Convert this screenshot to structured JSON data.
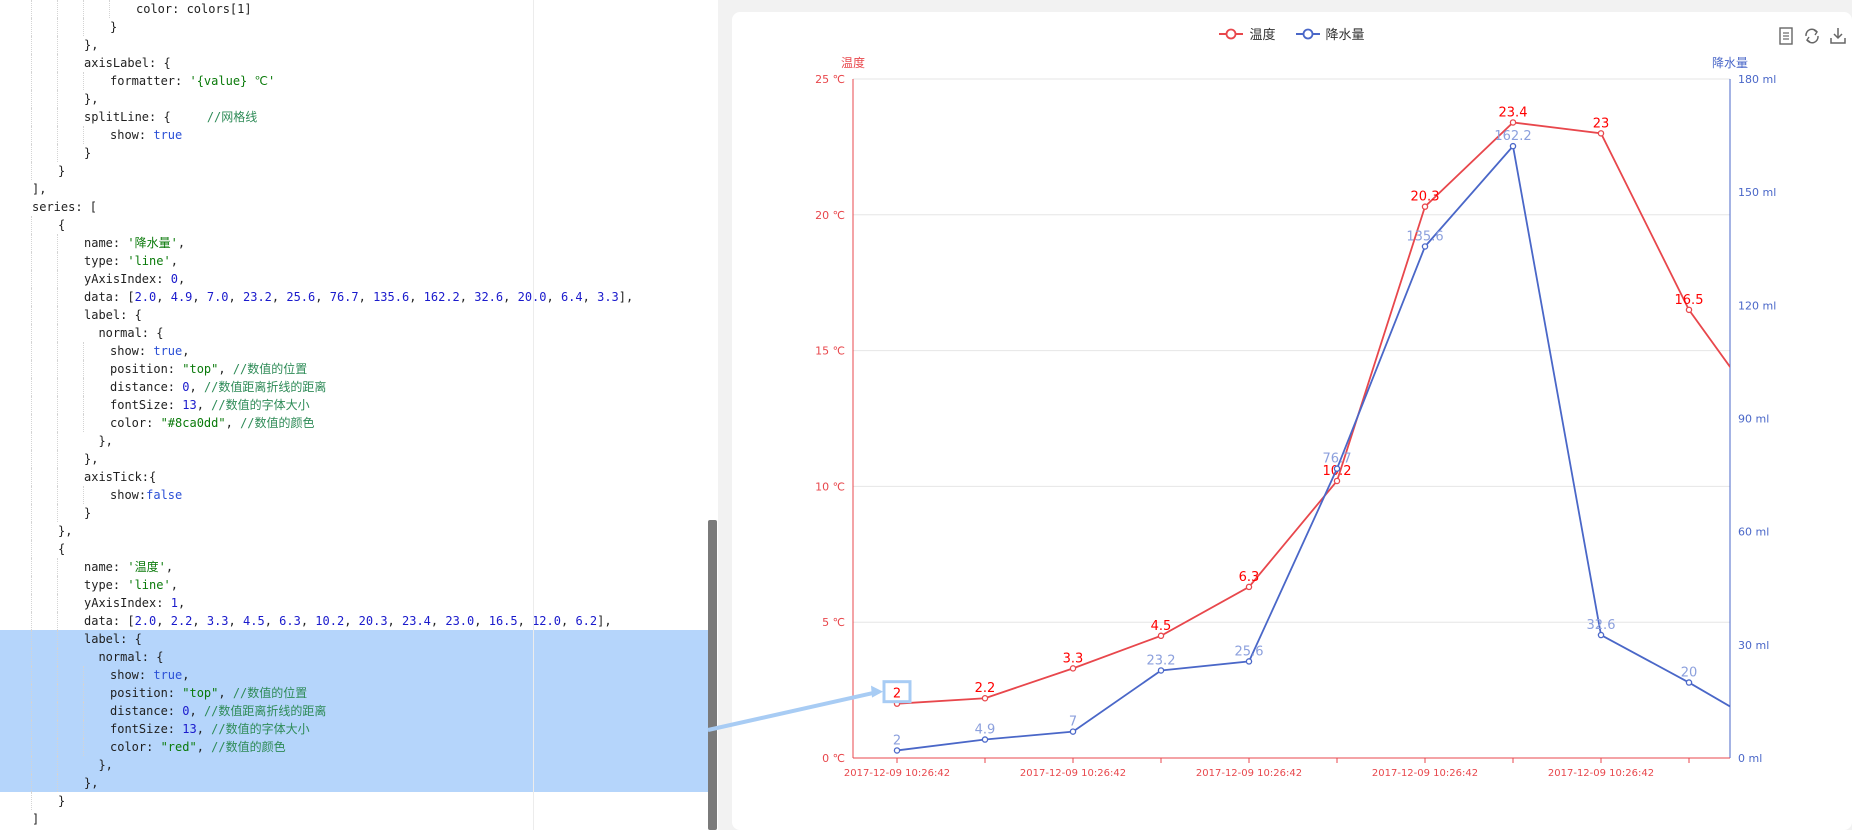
{
  "editor": {
    "lines": [
      {
        "indent": 5,
        "tokens": [
          [
            "p",
            "color: colors[1]"
          ]
        ]
      },
      {
        "indent": 4,
        "tokens": [
          [
            "p",
            "}"
          ]
        ]
      },
      {
        "indent": 3,
        "tokens": [
          [
            "p",
            "},"
          ]
        ]
      },
      {
        "indent": 3,
        "tokens": [
          [
            "p",
            "axisLabel: {"
          ]
        ]
      },
      {
        "indent": 4,
        "tokens": [
          [
            "p",
            "formatter: "
          ],
          [
            "str",
            "'{value} ℃'"
          ]
        ]
      },
      {
        "indent": 3,
        "tokens": [
          [
            "p",
            "},"
          ]
        ]
      },
      {
        "indent": 3,
        "tokens": [
          [
            "p",
            "splitLine: {     "
          ],
          [
            "cmt",
            "//网格线"
          ]
        ]
      },
      {
        "indent": 4,
        "tokens": [
          [
            "p",
            "show: "
          ],
          [
            "kw",
            "true"
          ]
        ]
      },
      {
        "indent": 3,
        "tokens": [
          [
            "p",
            "}"
          ]
        ]
      },
      {
        "indent": 2,
        "tokens": [
          [
            "p",
            "}"
          ]
        ]
      },
      {
        "indent": 1,
        "tokens": [
          [
            "p",
            "],"
          ]
        ]
      },
      {
        "indent": 1,
        "tokens": [
          [
            "p",
            "series: ["
          ]
        ]
      },
      {
        "indent": 2,
        "tokens": [
          [
            "p",
            "{"
          ]
        ]
      },
      {
        "indent": 3,
        "tokens": [
          [
            "p",
            "name: "
          ],
          [
            "str",
            "'降水量'"
          ],
          [
            "p",
            ","
          ]
        ]
      },
      {
        "indent": 3,
        "tokens": [
          [
            "p",
            "type: "
          ],
          [
            "str",
            "'line'"
          ],
          [
            "p",
            ","
          ]
        ]
      },
      {
        "indent": 3,
        "tokens": [
          [
            "p",
            "yAxisIndex: "
          ],
          [
            "num",
            "0"
          ],
          [
            "p",
            ","
          ]
        ]
      },
      {
        "indent": 3,
        "tokens": [
          [
            "p",
            "data: ["
          ],
          [
            "num",
            "2.0"
          ],
          [
            "p",
            ", "
          ],
          [
            "num",
            "4.9"
          ],
          [
            "p",
            ", "
          ],
          [
            "num",
            "7.0"
          ],
          [
            "p",
            ", "
          ],
          [
            "num",
            "23.2"
          ],
          [
            "p",
            ", "
          ],
          [
            "num",
            "25.6"
          ],
          [
            "p",
            ", "
          ],
          [
            "num",
            "76.7"
          ],
          [
            "p",
            ", "
          ],
          [
            "num",
            "135.6"
          ],
          [
            "p",
            ", "
          ],
          [
            "num",
            "162.2"
          ],
          [
            "p",
            ", "
          ],
          [
            "num",
            "32.6"
          ],
          [
            "p",
            ", "
          ],
          [
            "num",
            "20.0"
          ],
          [
            "p",
            ", "
          ],
          [
            "num",
            "6.4"
          ],
          [
            "p",
            ", "
          ],
          [
            "num",
            "3.3"
          ],
          [
            "p",
            "],"
          ]
        ]
      },
      {
        "indent": 3,
        "tokens": [
          [
            "p",
            "label: {"
          ]
        ]
      },
      {
        "indent": 3,
        "tokens": [
          [
            "p",
            "  normal: {"
          ]
        ]
      },
      {
        "indent": 4,
        "tokens": [
          [
            "p",
            "show: "
          ],
          [
            "kw",
            "true"
          ],
          [
            "p",
            ","
          ]
        ]
      },
      {
        "indent": 4,
        "tokens": [
          [
            "p",
            "position: "
          ],
          [
            "str",
            "\"top\""
          ],
          [
            "p",
            ", "
          ],
          [
            "cmt",
            "//数值的位置"
          ]
        ]
      },
      {
        "indent": 4,
        "tokens": [
          [
            "p",
            "distance: "
          ],
          [
            "num",
            "0"
          ],
          [
            "p",
            ", "
          ],
          [
            "cmt",
            "//数值距离折线的距离"
          ]
        ]
      },
      {
        "indent": 4,
        "tokens": [
          [
            "p",
            "fontSize: "
          ],
          [
            "num",
            "13"
          ],
          [
            "p",
            ", "
          ],
          [
            "cmt",
            "//数值的字体大小"
          ]
        ]
      },
      {
        "indent": 4,
        "tokens": [
          [
            "p",
            "color: "
          ],
          [
            "str",
            "\"#8ca0dd\""
          ],
          [
            "p",
            ", "
          ],
          [
            "cmt",
            "//数值的颜色"
          ]
        ]
      },
      {
        "indent": 3,
        "tokens": [
          [
            "p",
            "  },"
          ]
        ]
      },
      {
        "indent": 3,
        "tokens": [
          [
            "p",
            "},"
          ]
        ]
      },
      {
        "indent": 3,
        "tokens": [
          [
            "p",
            "axisTick:{"
          ]
        ]
      },
      {
        "indent": 4,
        "tokens": [
          [
            "p",
            "show:"
          ],
          [
            "kw",
            "false"
          ]
        ]
      },
      {
        "indent": 3,
        "tokens": [
          [
            "p",
            "}"
          ]
        ]
      },
      {
        "indent": 2,
        "tokens": [
          [
            "p",
            "},"
          ]
        ]
      },
      {
        "indent": 2,
        "tokens": [
          [
            "p",
            "{"
          ]
        ]
      },
      {
        "indent": 3,
        "tokens": [
          [
            "p",
            "name: "
          ],
          [
            "str",
            "'温度'"
          ],
          [
            "p",
            ","
          ]
        ]
      },
      {
        "indent": 3,
        "tokens": [
          [
            "p",
            "type: "
          ],
          [
            "str",
            "'line'"
          ],
          [
            "p",
            ","
          ]
        ]
      },
      {
        "indent": 3,
        "tokens": [
          [
            "p",
            "yAxisIndex: "
          ],
          [
            "num",
            "1"
          ],
          [
            "p",
            ","
          ]
        ]
      },
      {
        "indent": 3,
        "tokens": [
          [
            "p",
            "data: ["
          ],
          [
            "num",
            "2.0"
          ],
          [
            "p",
            ", "
          ],
          [
            "num",
            "2.2"
          ],
          [
            "p",
            ", "
          ],
          [
            "num",
            "3.3"
          ],
          [
            "p",
            ", "
          ],
          [
            "num",
            "4.5"
          ],
          [
            "p",
            ", "
          ],
          [
            "num",
            "6.3"
          ],
          [
            "p",
            ", "
          ],
          [
            "num",
            "10.2"
          ],
          [
            "p",
            ", "
          ],
          [
            "num",
            "20.3"
          ],
          [
            "p",
            ", "
          ],
          [
            "num",
            "23.4"
          ],
          [
            "p",
            ", "
          ],
          [
            "num",
            "23.0"
          ],
          [
            "p",
            ", "
          ],
          [
            "num",
            "16.5"
          ],
          [
            "p",
            ", "
          ],
          [
            "num",
            "12.0"
          ],
          [
            "p",
            ", "
          ],
          [
            "num",
            "6.2"
          ],
          [
            "p",
            "],"
          ]
        ]
      },
      {
        "indent": 3,
        "sel": true,
        "tokens": [
          [
            "p",
            "label: {"
          ]
        ]
      },
      {
        "indent": 3,
        "sel": true,
        "tokens": [
          [
            "p",
            "  normal: {"
          ]
        ]
      },
      {
        "indent": 4,
        "sel": true,
        "tokens": [
          [
            "p",
            "show: "
          ],
          [
            "kw",
            "true"
          ],
          [
            "p",
            ","
          ]
        ]
      },
      {
        "indent": 4,
        "sel": true,
        "tokens": [
          [
            "p",
            "position: "
          ],
          [
            "str",
            "\"top\""
          ],
          [
            "p",
            ", "
          ],
          [
            "cmt",
            "//数值的位置"
          ]
        ]
      },
      {
        "indent": 4,
        "sel": true,
        "tokens": [
          [
            "p",
            "distance: "
          ],
          [
            "num",
            "0"
          ],
          [
            "p",
            ", "
          ],
          [
            "cmt",
            "//数值距离折线的距离"
          ]
        ]
      },
      {
        "indent": 4,
        "sel": true,
        "tokens": [
          [
            "p",
            "fontSize: "
          ],
          [
            "num",
            "13"
          ],
          [
            "p",
            ", "
          ],
          [
            "cmt",
            "//数值的字体大小"
          ]
        ]
      },
      {
        "indent": 4,
        "sel": true,
        "tokens": [
          [
            "p",
            "color: "
          ],
          [
            "str",
            "\"red\""
          ],
          [
            "p",
            ", "
          ],
          [
            "cmt",
            "//数值的颜色"
          ]
        ]
      },
      {
        "indent": 3,
        "sel": true,
        "tokens": [
          [
            "p",
            "  },"
          ]
        ]
      },
      {
        "indent": 3,
        "sel": true,
        "tokens": [
          [
            "p",
            "},"
          ]
        ]
      },
      {
        "indent": 2,
        "tokens": [
          [
            "p",
            "}"
          ]
        ]
      },
      {
        "indent": 1,
        "tokens": [
          [
            "p",
            "]"
          ]
        ]
      }
    ]
  },
  "toolbox": {
    "icons": [
      "data-view-icon",
      "restore-icon",
      "save-image-icon"
    ]
  },
  "colors": {
    "temperature": "#e8474c",
    "precipitation": "#4a67c8",
    "precip_label": "#8ca0dd",
    "highlight": "#a8ccf4"
  },
  "chart_data": {
    "type": "line",
    "legend": [
      "温度",
      "降水量"
    ],
    "legend_position": "top-center",
    "x": [
      "2017-12-09 10:26:42",
      "2017-12-09 10:26:42",
      "2017-12-09 10:26:42",
      "2017-12-09 10:26:42",
      "2017-12-09 10:26:42",
      "2017-12-09 10:26:42",
      "2017-12-09 10:26:42",
      "2017-12-09 10:26:42",
      "2017-12-09 10:26:42",
      "2017-12-09 10:26:42",
      "2017-12-09 10:26:42",
      "2017-12-09 10:26:42"
    ],
    "x_tick_label": "2017-12-09 10:26:42",
    "left_axis": {
      "name": "温度",
      "min": 0,
      "max": 25,
      "ticks": [
        "0 ℃",
        "5 ℃",
        "10 ℃",
        "15 ℃",
        "20 ℃",
        "25 ℃"
      ]
    },
    "right_axis": {
      "name": "降水量",
      "min": 0,
      "max": 180,
      "ticks": [
        "0 ml",
        "30 ml",
        "60 ml",
        "90 ml",
        "120 ml",
        "150 ml",
        "180 ml"
      ]
    },
    "grid": true,
    "series": [
      {
        "name": "温度",
        "axis": "left",
        "values": [
          2.0,
          2.2,
          3.3,
          4.5,
          6.3,
          10.2,
          20.3,
          23.4,
          23.0,
          16.5,
          12.0,
          6.2
        ],
        "labels": [
          "2",
          "2.2",
          "3.3",
          "4.5",
          "6.3",
          "10.2",
          "20.3",
          "23.4",
          "23",
          "16.5",
          "",
          ""
        ]
      },
      {
        "name": "降水量",
        "axis": "right",
        "values": [
          2.0,
          4.9,
          7.0,
          23.2,
          25.6,
          76.7,
          135.6,
          162.2,
          32.6,
          20.0,
          6.4,
          3.3
        ],
        "labels": [
          "2",
          "4.9",
          "7",
          "23.2",
          "25.6",
          "76.7",
          "135.6",
          "162.2",
          "32.6",
          "20",
          "",
          ""
        ]
      }
    ]
  }
}
